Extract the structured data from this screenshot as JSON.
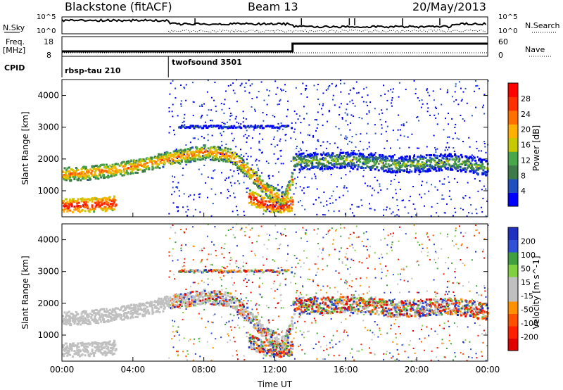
{
  "header": {
    "station": "Blackstone (fitACF)",
    "beam": "Beam 13",
    "date": "20/May/2013"
  },
  "summary_panels": {
    "nsky_label": "N.Sky",
    "nsearch_label": "N.Search",
    "counts_top_tick": "10^5",
    "counts_bottom_tick": "10^0",
    "freq_label_line1": "Freq.",
    "freq_label_line2": "[MHz]",
    "freq_tick_high": "18",
    "freq_tick_low": "8",
    "nave_label": "Nave",
    "nave_tick_high": "60",
    "nave_tick_low": "0",
    "cpid_label": "CPID",
    "cpid_segments": [
      {
        "name": "rbsp-tau 210",
        "start_hour": 0.0
      },
      {
        "name": "twofsound 3501",
        "start_hour": 6.0
      }
    ]
  },
  "colors": {
    "power_scale": [
      "#0000ff",
      "#2050c0",
      "#3e7a48",
      "#4aa64a",
      "#c8c800",
      "#ffb000",
      "#ff7000",
      "#ff3000",
      "#ff0000"
    ],
    "velocity_scale": [
      "#2030c0",
      "#3050d8",
      "#40a040",
      "#80d040",
      "#c0c0c0",
      "#c0c0c0",
      "#ff9000",
      "#ff5000",
      "#ff2000",
      "#e00000"
    ],
    "ground_scatter": "#c0c0c0"
  },
  "chart_data": [
    {
      "type": "heatmap",
      "title": "",
      "ylabel": "Slant Range [km]",
      "xlabel": "",
      "x_range_hours": [
        0,
        24
      ],
      "ylim": [
        180,
        4500
      ],
      "y_ticks": [
        "1000",
        "2000",
        "3000",
        "4000"
      ],
      "x_ticks": [
        "00:00",
        "04:00",
        "08:00",
        "12:00",
        "16:00",
        "20:00",
        "00:00"
      ],
      "colorbar": {
        "label": "Power [dB]",
        "ticks": [
          "28",
          "24",
          "20",
          "16",
          "12",
          "8",
          "4"
        ],
        "range": [
          0,
          30
        ]
      },
      "echo_bands": [
        {
          "t": [
            0,
            1.5,
            3.0,
            4.5,
            6.0,
            8.0,
            9.5,
            10.5,
            11.5,
            12.5,
            13.0
          ],
          "range_km": [
            1500,
            1550,
            1650,
            1800,
            2000,
            2200,
            2100,
            1600,
            1000,
            700,
            1400
          ],
          "peak_db": 22
        },
        {
          "t": [
            0,
            2.0,
            3.0
          ],
          "range_km": [
            500,
            550,
            600
          ],
          "peak_db": 28
        },
        {
          "t": [
            10.5,
            11.5,
            12.5,
            13.0
          ],
          "range_km": [
            800,
            550,
            500,
            600
          ],
          "peak_db": 28
        },
        {
          "t": [
            13.0,
            16.0,
            19.0,
            22.0,
            24.0
          ],
          "range_km": [
            1900,
            1950,
            1800,
            1900,
            1700
          ],
          "peak_db": 14
        },
        {
          "t": [
            6.5,
            13.0
          ],
          "range_km": [
            3000,
            3000
          ],
          "peak_db": 8
        }
      ]
    },
    {
      "type": "heatmap",
      "title": "",
      "ylabel": "Slant Range [km]",
      "xlabel": "Time UT",
      "x_range_hours": [
        0,
        24
      ],
      "ylim": [
        180,
        4500
      ],
      "y_ticks": [
        "1000",
        "2000",
        "3000",
        "4000"
      ],
      "x_ticks": [
        "00:00",
        "04:00",
        "08:00",
        "12:00",
        "16:00",
        "20:00",
        "00:00"
      ],
      "colorbar": {
        "label": "Velocity [m s^-1]",
        "ticks": [
          "200",
          "100",
          "50",
          "15",
          "-15",
          "-50",
          "-100",
          "-200"
        ],
        "range": [
          -250,
          250
        ]
      },
      "ground_scatter_shown": true
    }
  ]
}
